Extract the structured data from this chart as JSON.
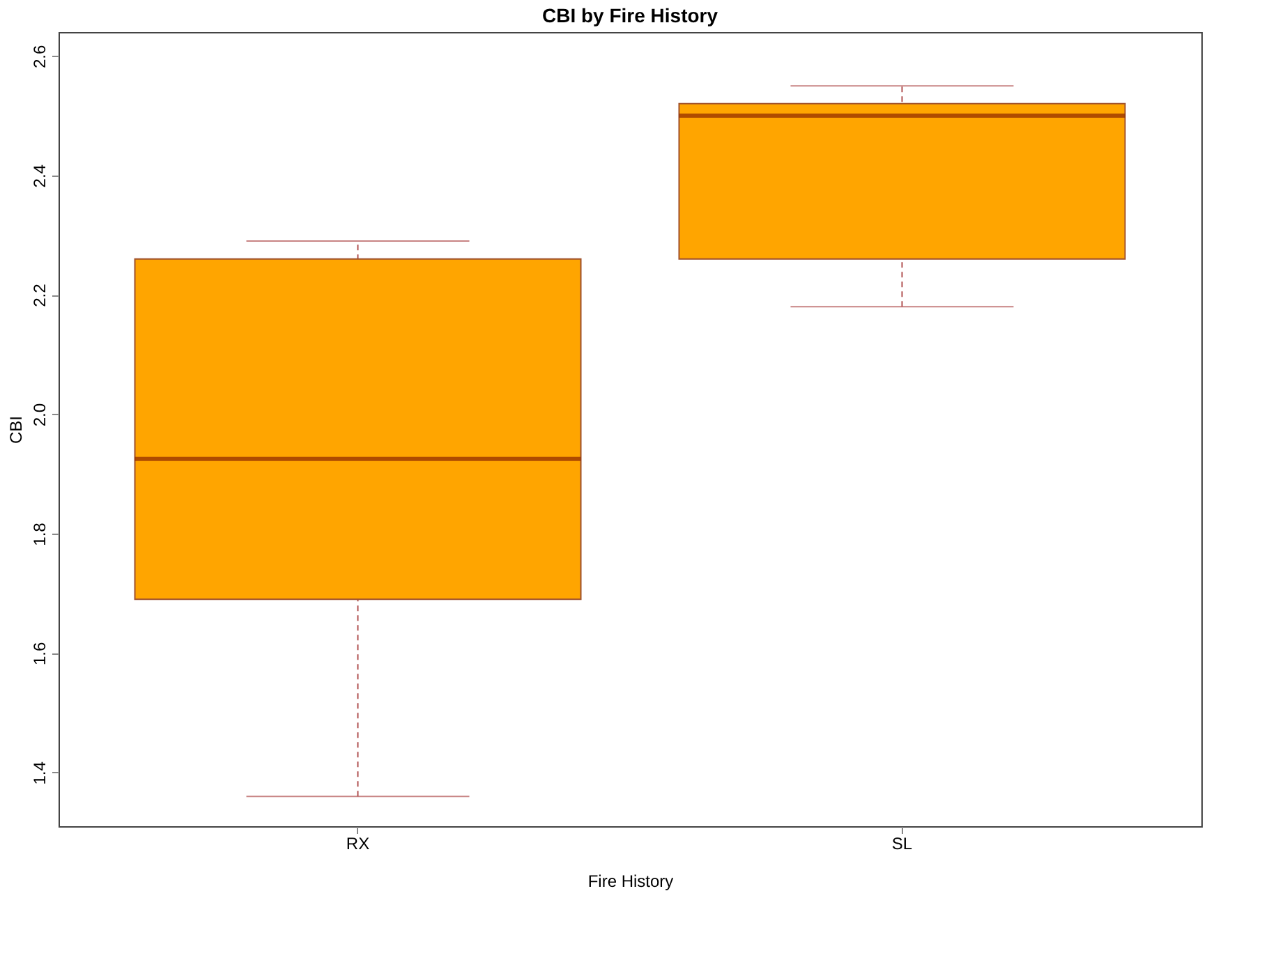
{
  "chart_data": {
    "type": "box",
    "title": "CBI by Fire History",
    "xlabel": "Fire History",
    "ylabel": "CBI",
    "categories": [
      "RX",
      "SL"
    ],
    "series": [
      {
        "color": "#ffa500",
        "boxes": [
          {
            "low": 1.36,
            "q1": 1.69,
            "median": 1.925,
            "q3": 2.26,
            "high": 2.29
          },
          {
            "low": 2.18,
            "q1": 2.26,
            "median": 2.5,
            "q3": 2.52,
            "high": 2.55
          }
        ]
      }
    ],
    "ylim": [
      1.31,
      2.64
    ],
    "yticks": [
      1.4,
      1.6,
      1.8,
      {
        "value": 2,
        "label": "2.0"
      },
      2.2,
      2.4,
      2.6
    ],
    "grid": false
  }
}
